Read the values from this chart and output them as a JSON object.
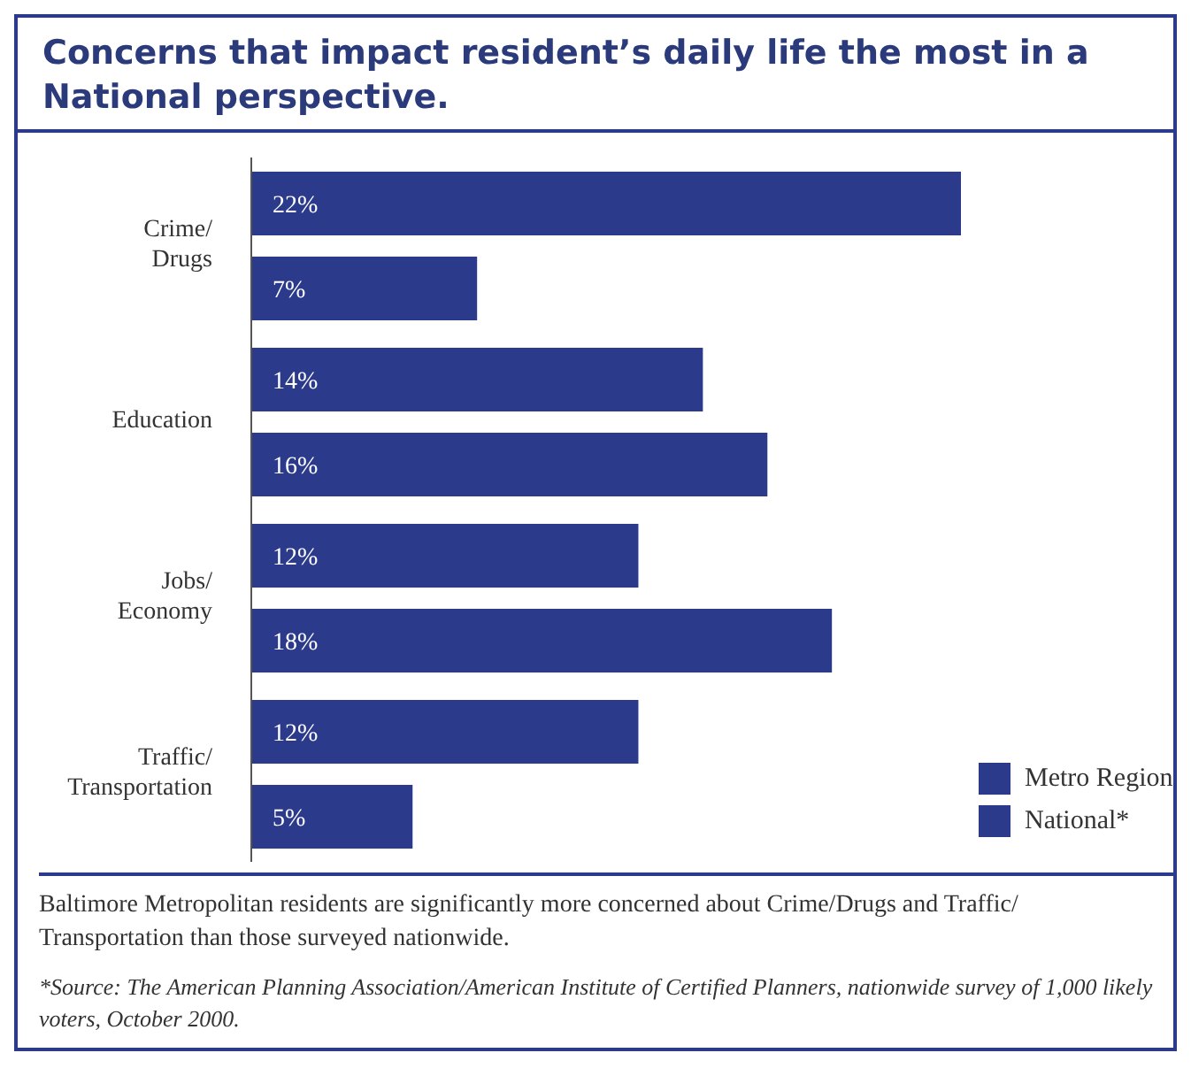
{
  "chart_data": {
    "type": "bar",
    "orientation": "horizontal",
    "title": "Concerns that impact resident’s daily life the most in a National perspective.",
    "categories": [
      "Crime/ Drugs",
      "Education",
      "Jobs/ Economy",
      "Traffic/ Transportation"
    ],
    "series": [
      {
        "name": "Metro Region",
        "color": "#2b3a8a",
        "values": [
          22,
          14,
          12,
          12
        ],
        "value_labels": [
          "22%",
          "14%",
          "12%",
          "12%"
        ]
      },
      {
        "name": "National*",
        "color": "#2b3a8a",
        "values": [
          7,
          16,
          18,
          5
        ],
        "value_labels": [
          "7%",
          "16%",
          "18%",
          "5%"
        ]
      }
    ],
    "legend": "bottom right",
    "grid": false,
    "annotations": [
      "Baltimore Metropolitan residents are significantly more concerned about Crime/Drugs and Traffic/ Transportation than those surveyed nationwide.",
      "*Source: The American Planning Association/American Institute of Certified Planners, nationwide survey of 1,000 likely voters, October 2000."
    ]
  }
}
